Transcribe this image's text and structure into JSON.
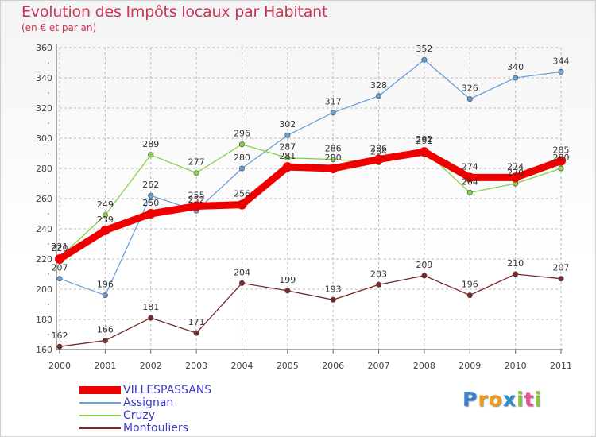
{
  "title": "Evolution des Impôts locaux par Habitant",
  "subtitle": "(en € et par an)",
  "chart_data": {
    "type": "line",
    "title": "Evolution des Impôts locaux par Habitant",
    "subtitle": "(en € et par an)",
    "xlabel": "",
    "ylabel": "",
    "x": [
      "2000",
      "2001",
      "2002",
      "2003",
      "2004",
      "2005",
      "2006",
      "2007",
      "2008",
      "2009",
      "2010",
      "2011"
    ],
    "ylim": [
      160,
      360
    ],
    "yticks": [
      "160",
      "180",
      "200",
      "220",
      "240",
      "260",
      "280",
      "300",
      "320",
      "340",
      "360"
    ],
    "series": [
      {
        "name": "VILLESPASSANS",
        "color": "#ee0000",
        "values": [
          220,
          239,
          250,
          255,
          256,
          281,
          280,
          286,
          291,
          274,
          274,
          285
        ]
      },
      {
        "name": "Assignan",
        "color": "#6aa0d8",
        "values": [
          207,
          196,
          262,
          252,
          280,
          302,
          317,
          328,
          352,
          326,
          340,
          344
        ]
      },
      {
        "name": "Cruzy",
        "color": "#88d04a",
        "values": [
          221,
          249,
          289,
          277,
          296,
          287,
          286,
          284,
          292,
          264,
          270,
          280
        ]
      },
      {
        "name": "Montouliers",
        "color": "#7a2a2a",
        "values": [
          162,
          166,
          181,
          171,
          204,
          199,
          193,
          203,
          209,
          196,
          210,
          207
        ]
      }
    ],
    "legend_position": "bottom-left"
  },
  "logo": {
    "letters": [
      "P",
      "r",
      "o",
      "x",
      "i",
      "t",
      "i"
    ],
    "colors": [
      "#3a7fd0",
      "#f39a1a",
      "#f39a1a",
      "#2a8fd0",
      "#8cc63f",
      "#e94f93",
      "#8cc63f"
    ]
  }
}
